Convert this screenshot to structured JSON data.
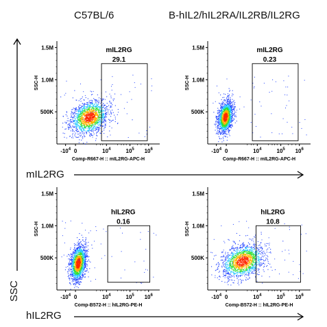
{
  "column_headers": [
    "C57BL/6",
    "B-hIL2/hIL2RA/IL2RB/IL2RG"
  ],
  "row_arrow_labels": [
    "mIL2RG",
    "hIL2RG"
  ],
  "left_axis_label": "SSC",
  "colors": {
    "low": "#1a3cff",
    "mid": "#22c8ff",
    "high": "#30e030",
    "peak": "#ff2a00",
    "gate": "#000000"
  },
  "chart_data": [
    {
      "type": "scatter",
      "panel": "C57BL/6 mIL2RG",
      "ylabel": "SSC-H",
      "xlabel": "Comp-R667-H :: mIL2RG-APC-H",
      "yticks": [
        "1.5M",
        "1.0M",
        "500K"
      ],
      "xticks": [
        "-10^4",
        "0",
        "10^4",
        "10^5",
        "10^6"
      ],
      "gate_label": "mIL2RG",
      "gate_value": "29.1",
      "gate_x_range": [
        2.3,
        6.0
      ],
      "gate_y_range": [
        0.05,
        1.25
      ],
      "population": {
        "center_x": 1.3,
        "center_y": 0.42,
        "spread_x": 0.75,
        "spread_y": 0.14
      }
    },
    {
      "type": "scatter",
      "panel": "B-hIL2/hIL2RA/IL2RB/IL2RG mIL2RG",
      "ylabel": "SSC-H",
      "xlabel": "Comp-R667-H :: mIL2RG-APC-H",
      "yticks": [
        "1.5M",
        "1.0M",
        "500K"
      ],
      "xticks": [
        "-10^4",
        "0",
        "10^4",
        "10^5",
        "10^6"
      ],
      "gate_label": "mIL2RG",
      "gate_value": "0.23",
      "gate_x_range": [
        2.3,
        6.0
      ],
      "gate_y_range": [
        0.05,
        1.25
      ],
      "population": {
        "center_x": 0.1,
        "center_y": 0.42,
        "spread_x": 0.3,
        "spread_y": 0.13
      }
    },
    {
      "type": "scatter",
      "panel": "C57BL/6 hIL2RG",
      "ylabel": "SSC-H",
      "xlabel": "Comp-B572-H :: hIL2RG-PE-H",
      "yticks": [
        "1.5M",
        "1.0M",
        "500K"
      ],
      "xticks": [
        "-10^4",
        "0",
        "10^4",
        "10^5",
        "10^6"
      ],
      "gate_label": "hIL2RG",
      "gate_value": "0.16",
      "gate_x_range": [
        2.8,
        6.2
      ],
      "gate_y_range": [
        0.12,
        1.0
      ],
      "population": {
        "center_x": 0.4,
        "center_y": 0.42,
        "spread_x": 0.32,
        "spread_y": 0.15
      }
    },
    {
      "type": "scatter",
      "panel": "B-hIL2/hIL2RA/IL2RB/IL2RG hIL2RG",
      "ylabel": "SSC-H",
      "xlabel": "Comp-B572-H :: hIL2RG-PE-H",
      "yticks": [
        "1.5M",
        "1.0M",
        "500K"
      ],
      "xticks": [
        "-10^4",
        "0",
        "10^4",
        "10^5",
        "10^6"
      ],
      "gate_label": "hIL2RG",
      "gate_value": "10.8",
      "gate_x_range": [
        2.6,
        6.2
      ],
      "gate_y_range": [
        0.12,
        1.0
      ],
      "population": {
        "center_x": 1.5,
        "center_y": 0.45,
        "spread_x": 0.85,
        "spread_y": 0.14
      }
    }
  ]
}
